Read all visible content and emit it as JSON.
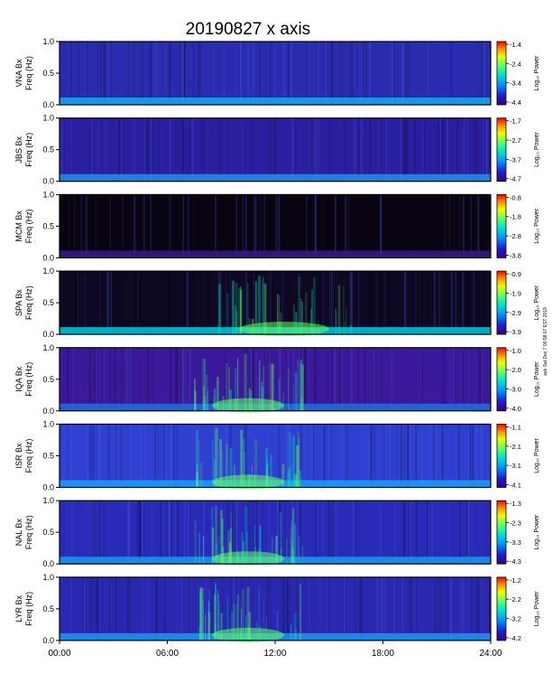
{
  "title": "20190827 x axis",
  "side_note": "aak Sat Dec 7 00:58:07 EST 2019",
  "colorbar_label": "Log₁₀ Power",
  "freq_label": "Freq (Hz)",
  "chart_data": {
    "type": "heatmap",
    "x_unit": "UT",
    "x_range_hours": [
      0,
      24
    ],
    "x_ticks": [
      "00:00",
      "06:00",
      "12:00",
      "18:00",
      "24:00"
    ],
    "y_range_hz": [
      0.0,
      1.0
    ],
    "y_ticks": [
      "0.0",
      "0.5",
      "1.0"
    ],
    "colormap": [
      "#000000",
      "#3a0078",
      "#1e1ed2",
      "#0096ff",
      "#00e6c8",
      "#64ff64",
      "#e6ff00",
      "#ff9600",
      "#ff0000"
    ],
    "panels": [
      {
        "station_label": "VNA Bx",
        "cbar_ticks": [
          "-1.4",
          "-2.4",
          "-3.4",
          "-4.4"
        ],
        "bg": "#2b2bb0",
        "lowband": "#1aa7f0"
      },
      {
        "station_label": "JBS Bx",
        "cbar_ticks": [
          "-1.7",
          "-2.7",
          "-3.7",
          "-4.7"
        ],
        "bg": "#2a1f9e",
        "lowband": "#1e90f0"
      },
      {
        "station_label": "MCM Bx",
        "cbar_ticks": [
          "-0.8",
          "-1.8",
          "-2.8",
          "-3.8"
        ],
        "bg": "#0a0412",
        "lowband": "#3a1a8a"
      },
      {
        "station_label": "SPA Bx",
        "cbar_ticks": [
          "-0.9",
          "-1.9",
          "-2.9",
          "-3.9"
        ],
        "bg": "#0e0822",
        "lowband": "#00c8e0"
      },
      {
        "station_label": "IQA Bx",
        "cbar_ticks": [
          "-1.0",
          "-2.0",
          "-3.0",
          "-4.0"
        ],
        "bg": "#3a1a9a",
        "lowband": "#1e6ee6"
      },
      {
        "station_label": "ISR Bx",
        "cbar_ticks": [
          "-1.1",
          "-2.1",
          "-3.1",
          "-4.1"
        ],
        "bg": "#2f3fd0",
        "lowband": "#1aa0f0"
      },
      {
        "station_label": "NAL Bx",
        "cbar_ticks": [
          "-1.3",
          "-2.3",
          "-3.3",
          "-4.3"
        ],
        "bg": "#2a2ab8",
        "lowband": "#1a98f0"
      },
      {
        "station_label": "LYR Bx",
        "cbar_ticks": [
          "-1.2",
          "-2.2",
          "-3.2",
          "-4.2"
        ],
        "bg": "#2a28b0",
        "lowband": "#1a98f0"
      }
    ]
  }
}
